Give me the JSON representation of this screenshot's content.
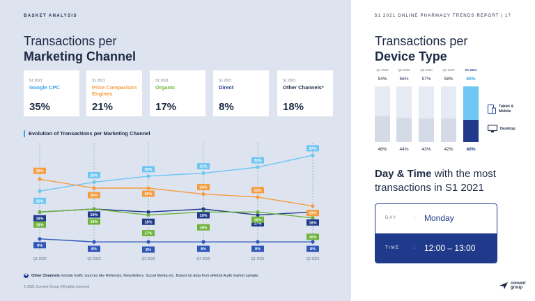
{
  "header": {
    "section": "BASKET ANALYSIS",
    "report": "S1 2021 ONLINE PHARMACY TRENDS REPORT  |  17"
  },
  "marketing": {
    "title_line1": "Transactions per",
    "title_line2": "Marketing Channel",
    "cards": [
      {
        "period": "S1 2021",
        "name": "Google CPC",
        "value": "35%",
        "color": "#3aa0e8"
      },
      {
        "period": "S1 2021",
        "name": "Price Comparison Engines",
        "value": "21%",
        "color": "#f59c3c"
      },
      {
        "period": "S1 2021",
        "name": "Organic",
        "value": "17%",
        "color": "#6fb33d"
      },
      {
        "period": "S1 2021",
        "name": "Direct",
        "value": "8%",
        "color": "#1f3a8a"
      },
      {
        "period": "S1 2021",
        "name": "Other Channels*",
        "value": "18%",
        "color": "#1d2a44"
      }
    ]
  },
  "chart_data": {
    "type": "line",
    "title": "Evolution of Transactions per Marketing Channel",
    "categories": [
      "Q1 2020",
      "Q2 2020",
      "Q3 2020",
      "Q4 2020",
      "Q1 2021",
      "Q2 2021"
    ],
    "series": [
      {
        "name": "Google CPC",
        "color": "#6ec6f2",
        "values": [
          25,
          28,
          30,
          31,
          33,
          37
        ]
      },
      {
        "name": "Price Comparison Engines",
        "color": "#f59c3c",
        "values": [
          29,
          26,
          26,
          24,
          23,
          20
        ]
      },
      {
        "name": "Other Channels*",
        "color": "#1f3a8a",
        "values": [
          18,
          19,
          18,
          19,
          17,
          18
        ]
      },
      {
        "name": "Organic",
        "color": "#6fb33d",
        "values": [
          18,
          19,
          17,
          18,
          18,
          16
        ]
      },
      {
        "name": "Direct",
        "color": "#2f57b8",
        "values": [
          9,
          8,
          8,
          8,
          8,
          8
        ]
      }
    ],
    "ylim": [
      0,
      40
    ]
  },
  "footnote": {
    "bold": "Other Channels",
    "text": " include traffic sources like Referrals, Newsletters, Social Media etc. Based on data from eRetail Audit market sample."
  },
  "copyright": "© 2021 Convert Group  |  All rights reserved",
  "device": {
    "title_line1": "Transactions per",
    "title_line2": "Device Type",
    "quarters": [
      "Q1 2020",
      "Q2 2020",
      "Q3 2020",
      "Q4 2020",
      "S1 2021"
    ],
    "tablet_mobile": [
      54,
      56,
      57,
      58,
      60
    ],
    "desktop": [
      46,
      44,
      43,
      42,
      40
    ],
    "tablet_mobile_labels": [
      "54%",
      "56%",
      "57%",
      "58%",
      "60%"
    ],
    "desktop_labels": [
      "46%",
      "44%",
      "43%",
      "42%",
      "40%"
    ],
    "legend_tablet": "Tablet & Mobile",
    "legend_desktop": "Desktop",
    "highlight_color": "#6ec6f2",
    "highlight_dark": "#1f3a8a"
  },
  "daytime": {
    "heading_bold": "Day & Time",
    "heading_rest": " with the most transactions in S1 2021",
    "day_label": "DAY",
    "day_value": "Monday",
    "time_label": "TIME",
    "time_value": "12:00 – 13:00",
    "colon": ":"
  },
  "logo": {
    "line1": "convert",
    "line2": "group"
  }
}
